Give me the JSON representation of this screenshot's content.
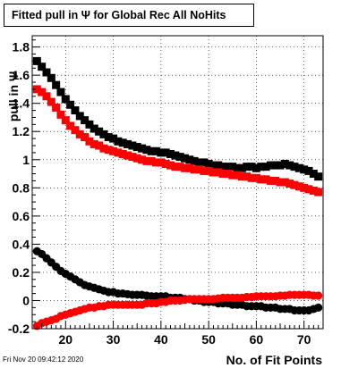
{
  "title": "Fitted pull in Ψ  for Global Rec All NoHits",
  "timestamp": "Fri Nov 20 09:42:12 2020",
  "chart_data": {
    "type": "scatter",
    "xlabel": "No. of Fit Points",
    "ylabel": "pull in Ψ",
    "xlim": [
      13,
      74
    ],
    "ylim": [
      -0.2,
      1.88
    ],
    "x_ticks": [
      20,
      30,
      40,
      50,
      60,
      70
    ],
    "x_tick_labels": [
      "20",
      "30",
      "40",
      "50",
      "60",
      "70"
    ],
    "y_ticks": [
      -0.2,
      0,
      0.2,
      0.4,
      0.6,
      0.8,
      1.0,
      1.2,
      1.4,
      1.6,
      1.8
    ],
    "y_tick_labels": [
      "-0.2",
      "0",
      "0.2",
      "0.4",
      "0.6",
      "0.8",
      "1",
      "1.2",
      "1.4",
      "1.6",
      "1.8"
    ],
    "grid": true,
    "x": [
      14,
      15,
      16,
      17,
      18,
      19,
      20,
      21,
      22,
      23,
      24,
      25,
      26,
      27,
      28,
      29,
      30,
      31,
      32,
      33,
      34,
      35,
      36,
      37,
      38,
      39,
      40,
      41,
      42,
      43,
      44,
      45,
      46,
      47,
      48,
      49,
      50,
      51,
      52,
      53,
      54,
      55,
      56,
      57,
      58,
      59,
      60,
      61,
      62,
      63,
      64,
      65,
      66,
      67,
      68,
      69,
      70,
      71,
      72,
      73
    ],
    "series": [
      {
        "marker": "square",
        "color": "#000000",
        "values": [
          1.7,
          1.66,
          1.62,
          1.58,
          1.53,
          1.48,
          1.43,
          1.39,
          1.35,
          1.31,
          1.28,
          1.25,
          1.22,
          1.2,
          1.18,
          1.16,
          1.15,
          1.13,
          1.12,
          1.11,
          1.1,
          1.09,
          1.08,
          1.07,
          1.06,
          1.06,
          1.05,
          1.05,
          1.04,
          1.03,
          1.02,
          1.01,
          1.0,
          0.99,
          0.98,
          0.98,
          0.97,
          0.96,
          0.96,
          0.95,
          0.95,
          0.95,
          0.94,
          0.94,
          0.95,
          0.95,
          0.94,
          0.95,
          0.95,
          0.96,
          0.96,
          0.96,
          0.97,
          0.96,
          0.95,
          0.94,
          0.93,
          0.92,
          0.9,
          0.88
        ]
      },
      {
        "marker": "square",
        "color": "#ff0000",
        "values": [
          1.5,
          1.48,
          1.45,
          1.41,
          1.37,
          1.32,
          1.28,
          1.24,
          1.21,
          1.18,
          1.16,
          1.13,
          1.11,
          1.1,
          1.08,
          1.07,
          1.06,
          1.05,
          1.04,
          1.03,
          1.02,
          1.01,
          1.0,
          0.99,
          0.99,
          0.98,
          0.98,
          0.97,
          0.96,
          0.95,
          0.95,
          0.94,
          0.94,
          0.93,
          0.93,
          0.92,
          0.92,
          0.91,
          0.91,
          0.9,
          0.9,
          0.89,
          0.89,
          0.88,
          0.88,
          0.87,
          0.87,
          0.86,
          0.86,
          0.85,
          0.85,
          0.84,
          0.84,
          0.83,
          0.82,
          0.81,
          0.8,
          0.79,
          0.78,
          0.77
        ]
      },
      {
        "marker": "circle",
        "color": "#000000",
        "values": [
          0.35,
          0.33,
          0.3,
          0.27,
          0.24,
          0.21,
          0.19,
          0.17,
          0.15,
          0.13,
          0.11,
          0.1,
          0.09,
          0.08,
          0.07,
          0.06,
          0.06,
          0.05,
          0.05,
          0.045,
          0.04,
          0.04,
          0.04,
          0.035,
          0.03,
          0.03,
          0.03,
          0.03,
          0.02,
          0.02,
          0.02,
          0.01,
          0.01,
          0.0,
          0.0,
          -0.01,
          -0.01,
          -0.01,
          -0.02,
          -0.02,
          -0.02,
          -0.03,
          -0.03,
          -0.03,
          -0.04,
          -0.04,
          -0.04,
          -0.04,
          -0.05,
          -0.05,
          -0.05,
          -0.06,
          -0.06,
          -0.06,
          -0.07,
          -0.07,
          -0.07,
          -0.07,
          -0.06,
          -0.05
        ]
      },
      {
        "marker": "circle",
        "color": "#ff0000",
        "values": [
          -0.18,
          -0.16,
          -0.15,
          -0.14,
          -0.13,
          -0.11,
          -0.1,
          -0.09,
          -0.08,
          -0.07,
          -0.06,
          -0.05,
          -0.05,
          -0.04,
          -0.04,
          -0.03,
          -0.03,
          -0.03,
          -0.03,
          -0.03,
          -0.03,
          -0.03,
          -0.03,
          -0.02,
          -0.02,
          -0.02,
          -0.01,
          -0.01,
          0.0,
          0.0,
          0.0,
          0.005,
          0.01,
          0.01,
          0.01,
          0.01,
          0.01,
          0.01,
          0.015,
          0.02,
          0.02,
          0.02,
          0.02,
          0.02,
          0.025,
          0.025,
          0.03,
          0.03,
          0.03,
          0.03,
          0.03,
          0.035,
          0.035,
          0.04,
          0.04,
          0.04,
          0.04,
          0.04,
          0.035,
          0.035
        ]
      }
    ]
  }
}
